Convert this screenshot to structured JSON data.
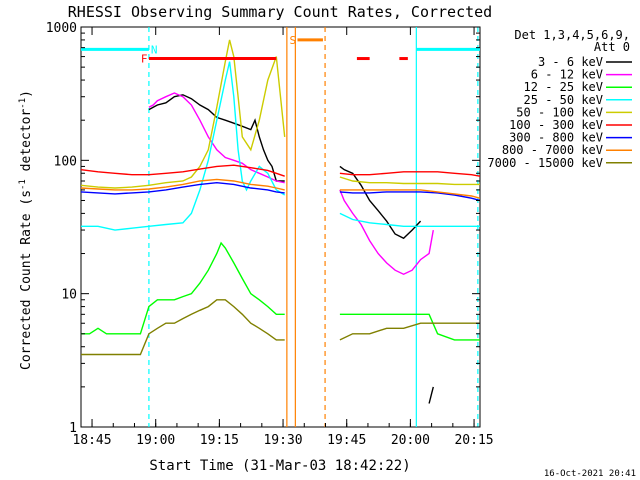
{
  "chart_data": {
    "type": "line",
    "title": "RHESSI Observing Summary Count Rates, Corrected",
    "xlabel": "Start Time (31-Mar-03 18:42:22)",
    "ylabel": "Corrected Count Rate (s^-1 detector^-1)",
    "ylabel_main": "Corrected Count Rate (s",
    "ylabel_sup1": "-1",
    "ylabel_mid": " detector",
    "ylabel_sup2": "-1",
    "ylabel_end": ")",
    "x_unit": "minutes after 18:42:22",
    "xlim": [
      0,
      94
    ],
    "ylim": [
      1,
      1000
    ],
    "yscale": "log",
    "x_ticks": [
      {
        "value": 2.6,
        "label": "18:45"
      },
      {
        "value": 17.6,
        "label": "19:00"
      },
      {
        "value": 32.6,
        "label": "19:15"
      },
      {
        "value": 47.6,
        "label": "19:30"
      },
      {
        "value": 62.6,
        "label": "19:45"
      },
      {
        "value": 77.6,
        "label": "20:00"
      },
      {
        "value": 92.6,
        "label": "20:15"
      }
    ],
    "y_ticks": [
      {
        "value": 1,
        "label": "1"
      },
      {
        "value": 10,
        "label": "10"
      },
      {
        "value": 100,
        "label": "100"
      },
      {
        "value": 1000,
        "label": "1000"
      }
    ],
    "detector_info": [
      "Det 1,3,4,5,6,9,",
      "Att 0"
    ],
    "timestamp": "16-Oct-2021 20:41",
    "legend_position": "right",
    "series": [
      {
        "name": "3 - 6 keV",
        "color": "#000000",
        "points": [
          [
            16,
            240
          ],
          [
            17,
            250
          ],
          [
            18,
            260
          ],
          [
            20,
            270
          ],
          [
            22,
            300
          ],
          [
            24,
            310
          ],
          [
            26,
            290
          ],
          [
            28,
            260
          ],
          [
            30,
            240
          ],
          [
            32,
            210
          ],
          [
            34,
            200
          ],
          [
            36,
            190
          ],
          [
            38,
            180
          ],
          [
            40,
            170
          ],
          [
            41,
            200
          ],
          [
            42,
            150
          ],
          [
            43,
            120
          ],
          [
            44,
            100
          ],
          [
            45,
            90
          ],
          [
            46,
            70
          ],
          [
            48,
            70
          ],
          [
            null,
            null
          ],
          [
            61,
            90
          ],
          [
            62,
            85
          ],
          [
            64,
            80
          ],
          [
            66,
            65
          ],
          [
            68,
            50
          ],
          [
            70,
            42
          ],
          [
            72,
            35
          ],
          [
            74,
            28
          ],
          [
            76,
            26
          ],
          [
            78,
            30
          ],
          [
            80,
            35
          ],
          [
            null,
            null
          ],
          [
            82,
            1.5
          ],
          [
            83,
            2
          ]
        ]
      },
      {
        "name": "6 - 12 keV",
        "color": "#ff00ff",
        "points": [
          [
            16,
            250
          ],
          [
            17,
            260
          ],
          [
            18,
            280
          ],
          [
            20,
            300
          ],
          [
            22,
            320
          ],
          [
            24,
            300
          ],
          [
            26,
            260
          ],
          [
            28,
            200
          ],
          [
            30,
            150
          ],
          [
            32,
            120
          ],
          [
            34,
            105
          ],
          [
            36,
            100
          ],
          [
            38,
            95
          ],
          [
            40,
            85
          ],
          [
            42,
            80
          ],
          [
            44,
            75
          ],
          [
            46,
            70
          ],
          [
            48,
            68
          ],
          [
            null,
            null
          ],
          [
            61,
            60
          ],
          [
            62,
            50
          ],
          [
            64,
            40
          ],
          [
            66,
            33
          ],
          [
            68,
            25
          ],
          [
            70,
            20
          ],
          [
            72,
            17
          ],
          [
            74,
            15
          ],
          [
            76,
            14
          ],
          [
            78,
            15
          ],
          [
            80,
            18
          ],
          [
            82,
            20
          ],
          [
            83,
            30
          ]
        ]
      },
      {
        "name": "12 - 25 keV",
        "color": "#00ff00",
        "points": [
          [
            0,
            5
          ],
          [
            2,
            5
          ],
          [
            4,
            5.5
          ],
          [
            6,
            5
          ],
          [
            8,
            5
          ],
          [
            10,
            5
          ],
          [
            12,
            5
          ],
          [
            14,
            5
          ],
          [
            16,
            8
          ],
          [
            18,
            9
          ],
          [
            20,
            9
          ],
          [
            22,
            9
          ],
          [
            24,
            9.5
          ],
          [
            26,
            10
          ],
          [
            28,
            12
          ],
          [
            30,
            15
          ],
          [
            32,
            20
          ],
          [
            33,
            24
          ],
          [
            34,
            22
          ],
          [
            36,
            17
          ],
          [
            38,
            13
          ],
          [
            40,
            10
          ],
          [
            42,
            9
          ],
          [
            44,
            8
          ],
          [
            46,
            7
          ],
          [
            48,
            7
          ],
          [
            null,
            null
          ],
          [
            61,
            7
          ],
          [
            64,
            7
          ],
          [
            68,
            7
          ],
          [
            72,
            7
          ],
          [
            76,
            7
          ],
          [
            80,
            7
          ],
          [
            82,
            7
          ],
          [
            84,
            5
          ],
          [
            88,
            4.5
          ],
          [
            92,
            4.5
          ],
          [
            94,
            4.5
          ]
        ]
      },
      {
        "name": "25 - 50 keV",
        "color": "#00ffff",
        "points": [
          [
            0,
            32
          ],
          [
            4,
            32
          ],
          [
            8,
            30
          ],
          [
            12,
            31
          ],
          [
            16,
            32
          ],
          [
            20,
            33
          ],
          [
            24,
            34
          ],
          [
            26,
            40
          ],
          [
            28,
            60
          ],
          [
            30,
            100
          ],
          [
            32,
            200
          ],
          [
            34,
            400
          ],
          [
            35,
            550
          ],
          [
            36,
            300
          ],
          [
            37,
            120
          ],
          [
            38,
            70
          ],
          [
            39,
            60
          ],
          [
            40,
            70
          ],
          [
            42,
            90
          ],
          [
            44,
            80
          ],
          [
            46,
            60
          ],
          [
            48,
            55
          ],
          [
            null,
            null
          ],
          [
            61,
            40
          ],
          [
            64,
            36
          ],
          [
            68,
            34
          ],
          [
            72,
            33
          ],
          [
            76,
            32
          ],
          [
            80,
            32
          ],
          [
            84,
            32
          ],
          [
            88,
            32
          ],
          [
            92,
            32
          ],
          [
            94,
            32
          ]
        ]
      },
      {
        "name": "50 - 100 keV",
        "color": "#cccc00",
        "points": [
          [
            0,
            65
          ],
          [
            4,
            63
          ],
          [
            8,
            62
          ],
          [
            12,
            63
          ],
          [
            16,
            65
          ],
          [
            20,
            68
          ],
          [
            24,
            70
          ],
          [
            26,
            75
          ],
          [
            28,
            90
          ],
          [
            30,
            120
          ],
          [
            32,
            250
          ],
          [
            34,
            550
          ],
          [
            35,
            800
          ],
          [
            36,
            600
          ],
          [
            37,
            300
          ],
          [
            38,
            150
          ],
          [
            40,
            120
          ],
          [
            42,
            200
          ],
          [
            44,
            400
          ],
          [
            46,
            600
          ],
          [
            48,
            150
          ],
          [
            null,
            null
          ],
          [
            61,
            75
          ],
          [
            64,
            70
          ],
          [
            68,
            68
          ],
          [
            72,
            68
          ],
          [
            76,
            67
          ],
          [
            80,
            67
          ],
          [
            84,
            67
          ],
          [
            88,
            66
          ],
          [
            92,
            66
          ],
          [
            94,
            66
          ]
        ]
      },
      {
        "name": "100 - 300 keV",
        "color": "#ff0000",
        "points": [
          [
            0,
            85
          ],
          [
            4,
            82
          ],
          [
            8,
            80
          ],
          [
            12,
            78
          ],
          [
            16,
            78
          ],
          [
            20,
            80
          ],
          [
            24,
            82
          ],
          [
            28,
            86
          ],
          [
            32,
            90
          ],
          [
            36,
            92
          ],
          [
            40,
            88
          ],
          [
            44,
            84
          ],
          [
            46,
            80
          ],
          [
            48,
            76
          ],
          [
            null,
            null
          ],
          [
            61,
            80
          ],
          [
            64,
            78
          ],
          [
            68,
            78
          ],
          [
            72,
            80
          ],
          [
            76,
            82
          ],
          [
            80,
            82
          ],
          [
            84,
            82
          ],
          [
            88,
            80
          ],
          [
            92,
            78
          ],
          [
            94,
            76
          ]
        ]
      },
      {
        "name": "300 - 800 keV",
        "color": "#0000ff",
        "points": [
          [
            0,
            58
          ],
          [
            4,
            57
          ],
          [
            8,
            56
          ],
          [
            12,
            57
          ],
          [
            16,
            58
          ],
          [
            20,
            60
          ],
          [
            24,
            63
          ],
          [
            28,
            66
          ],
          [
            32,
            68
          ],
          [
            36,
            66
          ],
          [
            40,
            62
          ],
          [
            44,
            60
          ],
          [
            46,
            58
          ],
          [
            48,
            57
          ],
          [
            null,
            null
          ],
          [
            61,
            58
          ],
          [
            64,
            57
          ],
          [
            68,
            57
          ],
          [
            72,
            58
          ],
          [
            76,
            58
          ],
          [
            80,
            58
          ],
          [
            84,
            57
          ],
          [
            88,
            55
          ],
          [
            92,
            52
          ],
          [
            94,
            50
          ]
        ]
      },
      {
        "name": "800 - 7000 keV",
        "color": "#ff8000",
        "points": [
          [
            0,
            62
          ],
          [
            4,
            61
          ],
          [
            8,
            60
          ],
          [
            12,
            60
          ],
          [
            16,
            61
          ],
          [
            20,
            63
          ],
          [
            24,
            66
          ],
          [
            28,
            70
          ],
          [
            32,
            72
          ],
          [
            36,
            70
          ],
          [
            40,
            66
          ],
          [
            44,
            64
          ],
          [
            46,
            62
          ],
          [
            48,
            60
          ],
          [
            null,
            null
          ],
          [
            61,
            60
          ],
          [
            64,
            60
          ],
          [
            68,
            60
          ],
          [
            72,
            60
          ],
          [
            76,
            60
          ],
          [
            80,
            60
          ],
          [
            84,
            58
          ],
          [
            88,
            56
          ],
          [
            92,
            54
          ],
          [
            94,
            52
          ]
        ]
      },
      {
        "name": "7000 - 15000 keV",
        "color": "#808000",
        "points": [
          [
            0,
            3.5
          ],
          [
            4,
            3.5
          ],
          [
            8,
            3.5
          ],
          [
            12,
            3.5
          ],
          [
            14,
            3.5
          ],
          [
            16,
            5
          ],
          [
            18,
            5.5
          ],
          [
            20,
            6
          ],
          [
            22,
            6
          ],
          [
            24,
            6.5
          ],
          [
            26,
            7
          ],
          [
            28,
            7.5
          ],
          [
            30,
            8
          ],
          [
            32,
            9
          ],
          [
            34,
            9
          ],
          [
            36,
            8
          ],
          [
            38,
            7
          ],
          [
            40,
            6
          ],
          [
            42,
            5.5
          ],
          [
            44,
            5
          ],
          [
            46,
            4.5
          ],
          [
            48,
            4.5
          ],
          [
            null,
            null
          ],
          [
            61,
            4.5
          ],
          [
            64,
            5
          ],
          [
            68,
            5
          ],
          [
            72,
            5.5
          ],
          [
            76,
            5.5
          ],
          [
            80,
            6
          ],
          [
            84,
            6
          ],
          [
            88,
            6
          ],
          [
            92,
            6
          ],
          [
            94,
            6
          ]
        ]
      }
    ],
    "flag_bars": [
      {
        "label": "F",
        "color": "#ff0000",
        "segments": [
          [
            16,
            46
          ],
          [
            65,
            68
          ],
          [
            75,
            77
          ]
        ],
        "level": 580
      },
      {
        "label": "S",
        "color": "#ff8000",
        "segments": [
          [
            51,
            57
          ]
        ],
        "level": 800
      },
      {
        "label": "N",
        "color": "#00ffff",
        "segments": [
          [
            0,
            16
          ],
          [
            79,
            94
          ]
        ],
        "level": 680
      }
    ],
    "vlines": [
      {
        "x": 16,
        "color": "#00ffff",
        "style": "dashed"
      },
      {
        "x": 48.5,
        "color": "#ff8000",
        "style": "solid"
      },
      {
        "x": 50.5,
        "color": "#ff8000",
        "style": "solid"
      },
      {
        "x": 57.5,
        "color": "#ff8000",
        "style": "dashed"
      },
      {
        "x": 79,
        "color": "#00ffff",
        "style": "solid"
      },
      {
        "x": 93.5,
        "color": "#00ffff",
        "style": "dashed"
      }
    ]
  }
}
